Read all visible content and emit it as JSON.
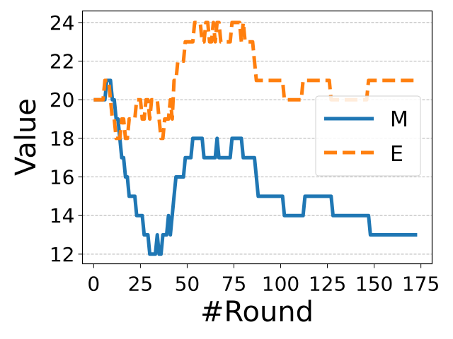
{
  "chart_data": {
    "type": "line",
    "xlabel": "#Round",
    "ylabel": "Value",
    "xlim": [
      -6,
      181
    ],
    "ylim": [
      11.5,
      24.6
    ],
    "xticks": [
      0,
      25,
      50,
      75,
      100,
      125,
      150,
      175
    ],
    "yticks": [
      12,
      14,
      16,
      18,
      20,
      22,
      24
    ],
    "grid": "y-dashed",
    "legend_position": "right",
    "series": [
      {
        "name": "M",
        "color": "#1f77b4",
        "style": "solid",
        "x": [
          0,
          1,
          2,
          3,
          4,
          5,
          6,
          7,
          8,
          9,
          10,
          11,
          12,
          13,
          14,
          15,
          16,
          17,
          18,
          19,
          20,
          21,
          22,
          23,
          24,
          25,
          26,
          27,
          28,
          29,
          30,
          31,
          32,
          33,
          34,
          35,
          36,
          37,
          38,
          39,
          40,
          41,
          42,
          43,
          44,
          45,
          46,
          47,
          48,
          49,
          50,
          51,
          52,
          53,
          54,
          55,
          56,
          57,
          58,
          59,
          60,
          61,
          62,
          63,
          64,
          65,
          66,
          67,
          68,
          69,
          70,
          71,
          72,
          73,
          74,
          75,
          76,
          77,
          78,
          79,
          80,
          81,
          82,
          83,
          84,
          85,
          86,
          87,
          88,
          89,
          90,
          91,
          92,
          93,
          94,
          95,
          96,
          97,
          98,
          99,
          100,
          101,
          102,
          103,
          104,
          105,
          106,
          107,
          108,
          109,
          110,
          111,
          112,
          113,
          114,
          115,
          116,
          117,
          118,
          119,
          120,
          121,
          122,
          123,
          124,
          125,
          126,
          127,
          128,
          129,
          130,
          131,
          132,
          133,
          134,
          135,
          136,
          137,
          138,
          139,
          140,
          141,
          142,
          143,
          144,
          145,
          146,
          147,
          148,
          149,
          150,
          151,
          152,
          153,
          154,
          155,
          156,
          157,
          158,
          159,
          160,
          161,
          162,
          163,
          164,
          165,
          166,
          167,
          168,
          169,
          170,
          171,
          172,
          173
        ],
        "y": [
          20,
          20,
          20,
          20,
          20,
          20,
          20,
          21,
          21,
          21,
          20,
          20,
          19,
          19,
          18,
          17,
          17,
          16,
          16,
          15,
          15,
          15,
          15,
          14,
          14,
          14,
          14,
          13,
          13,
          13,
          12,
          12,
          12,
          12,
          13,
          12,
          12,
          13,
          13,
          13,
          14,
          13,
          14,
          15,
          16,
          16,
          16,
          16,
          16,
          17,
          17,
          17,
          17,
          18,
          18,
          18,
          18,
          18,
          18,
          17,
          17,
          17,
          17,
          17,
          17,
          17,
          18,
          17,
          17,
          17,
          17,
          17,
          17,
          17,
          18,
          18,
          18,
          18,
          18,
          18,
          17,
          17,
          17,
          17,
          17,
          17,
          17,
          16,
          15,
          15,
          15,
          15,
          15,
          15,
          15,
          15,
          15,
          15,
          15,
          15,
          15,
          15,
          14,
          14,
          14,
          14,
          14,
          14,
          14,
          14,
          14,
          14,
          14,
          15,
          15,
          15,
          15,
          15,
          15,
          15,
          15,
          15,
          15,
          15,
          15,
          15,
          15,
          15,
          14,
          14,
          14,
          14,
          14,
          14,
          14,
          14,
          14,
          14,
          14,
          14,
          14,
          14,
          14,
          14,
          14,
          14,
          14,
          14,
          13,
          13,
          13,
          13,
          13,
          13,
          13,
          13,
          13,
          13,
          13,
          13,
          13,
          13,
          13,
          13,
          13,
          13,
          13,
          13,
          13,
          13,
          13,
          13,
          13,
          13
        ]
      },
      {
        "name": "E",
        "color": "#ff7f0e",
        "style": "dashed",
        "x": [
          0,
          1,
          2,
          3,
          4,
          5,
          6,
          7,
          8,
          9,
          10,
          11,
          12,
          13,
          14,
          15,
          16,
          17,
          18,
          19,
          20,
          21,
          22,
          23,
          24,
          25,
          26,
          27,
          28,
          29,
          30,
          31,
          32,
          33,
          34,
          35,
          36,
          37,
          38,
          39,
          40,
          41,
          42,
          43,
          44,
          45,
          46,
          47,
          48,
          49,
          50,
          51,
          52,
          53,
          54,
          55,
          56,
          57,
          58,
          59,
          60,
          61,
          62,
          63,
          64,
          65,
          66,
          67,
          68,
          69,
          70,
          71,
          72,
          73,
          74,
          75,
          76,
          77,
          78,
          79,
          80,
          81,
          82,
          83,
          84,
          85,
          86,
          87,
          88,
          89,
          90,
          91,
          92,
          93,
          94,
          95,
          96,
          97,
          98,
          99,
          100,
          101,
          102,
          103,
          104,
          105,
          106,
          107,
          108,
          109,
          110,
          111,
          112,
          113,
          114,
          115,
          116,
          117,
          118,
          119,
          120,
          121,
          122,
          123,
          124,
          125,
          126,
          127,
          128,
          129,
          130,
          131,
          132,
          133,
          134,
          135,
          136,
          137,
          138,
          139,
          140,
          141,
          142,
          143,
          144,
          145,
          146,
          147,
          148,
          149,
          150,
          151,
          152,
          153,
          154,
          155,
          156,
          157,
          158,
          159,
          160,
          161,
          162,
          163,
          164,
          165,
          166,
          167,
          168,
          169,
          170,
          171,
          172,
          173
        ],
        "y": [
          20,
          20,
          20,
          20,
          20,
          20,
          21,
          21,
          21,
          20,
          19,
          19,
          18,
          18,
          18,
          19,
          19,
          18,
          18,
          19,
          19,
          19,
          19,
          20,
          20,
          20,
          19,
          19,
          20,
          20,
          19,
          20,
          20,
          20,
          20,
          19,
          18,
          18,
          19,
          19,
          19,
          20,
          19,
          21,
          21,
          22,
          22,
          22,
          22,
          23,
          23,
          23,
          23,
          23,
          24,
          24,
          24,
          24,
          23,
          23,
          24,
          24,
          23,
          23,
          24,
          23,
          24,
          24,
          23,
          23,
          23,
          23,
          23,
          23,
          24,
          24,
          24,
          24,
          24,
          23,
          24,
          23,
          23,
          23,
          23,
          23,
          22,
          21,
          21,
          21,
          21,
          21,
          21,
          21,
          21,
          21,
          21,
          21,
          21,
          21,
          21,
          21,
          20,
          20,
          20,
          20,
          20,
          20,
          20,
          20,
          20,
          20,
          21,
          21,
          21,
          21,
          21,
          21,
          21,
          21,
          21,
          21,
          21,
          21,
          21,
          21,
          21,
          20,
          20,
          20,
          20,
          20,
          20,
          20,
          20,
          20,
          20,
          20,
          20,
          20,
          20,
          20,
          20,
          20,
          20,
          20,
          20,
          21,
          21,
          21,
          21,
          21,
          21,
          21,
          21,
          21,
          21,
          21,
          21,
          21,
          21,
          21,
          21,
          21,
          21,
          21,
          21,
          21,
          21,
          21,
          21,
          21,
          21,
          21
        ]
      }
    ]
  }
}
